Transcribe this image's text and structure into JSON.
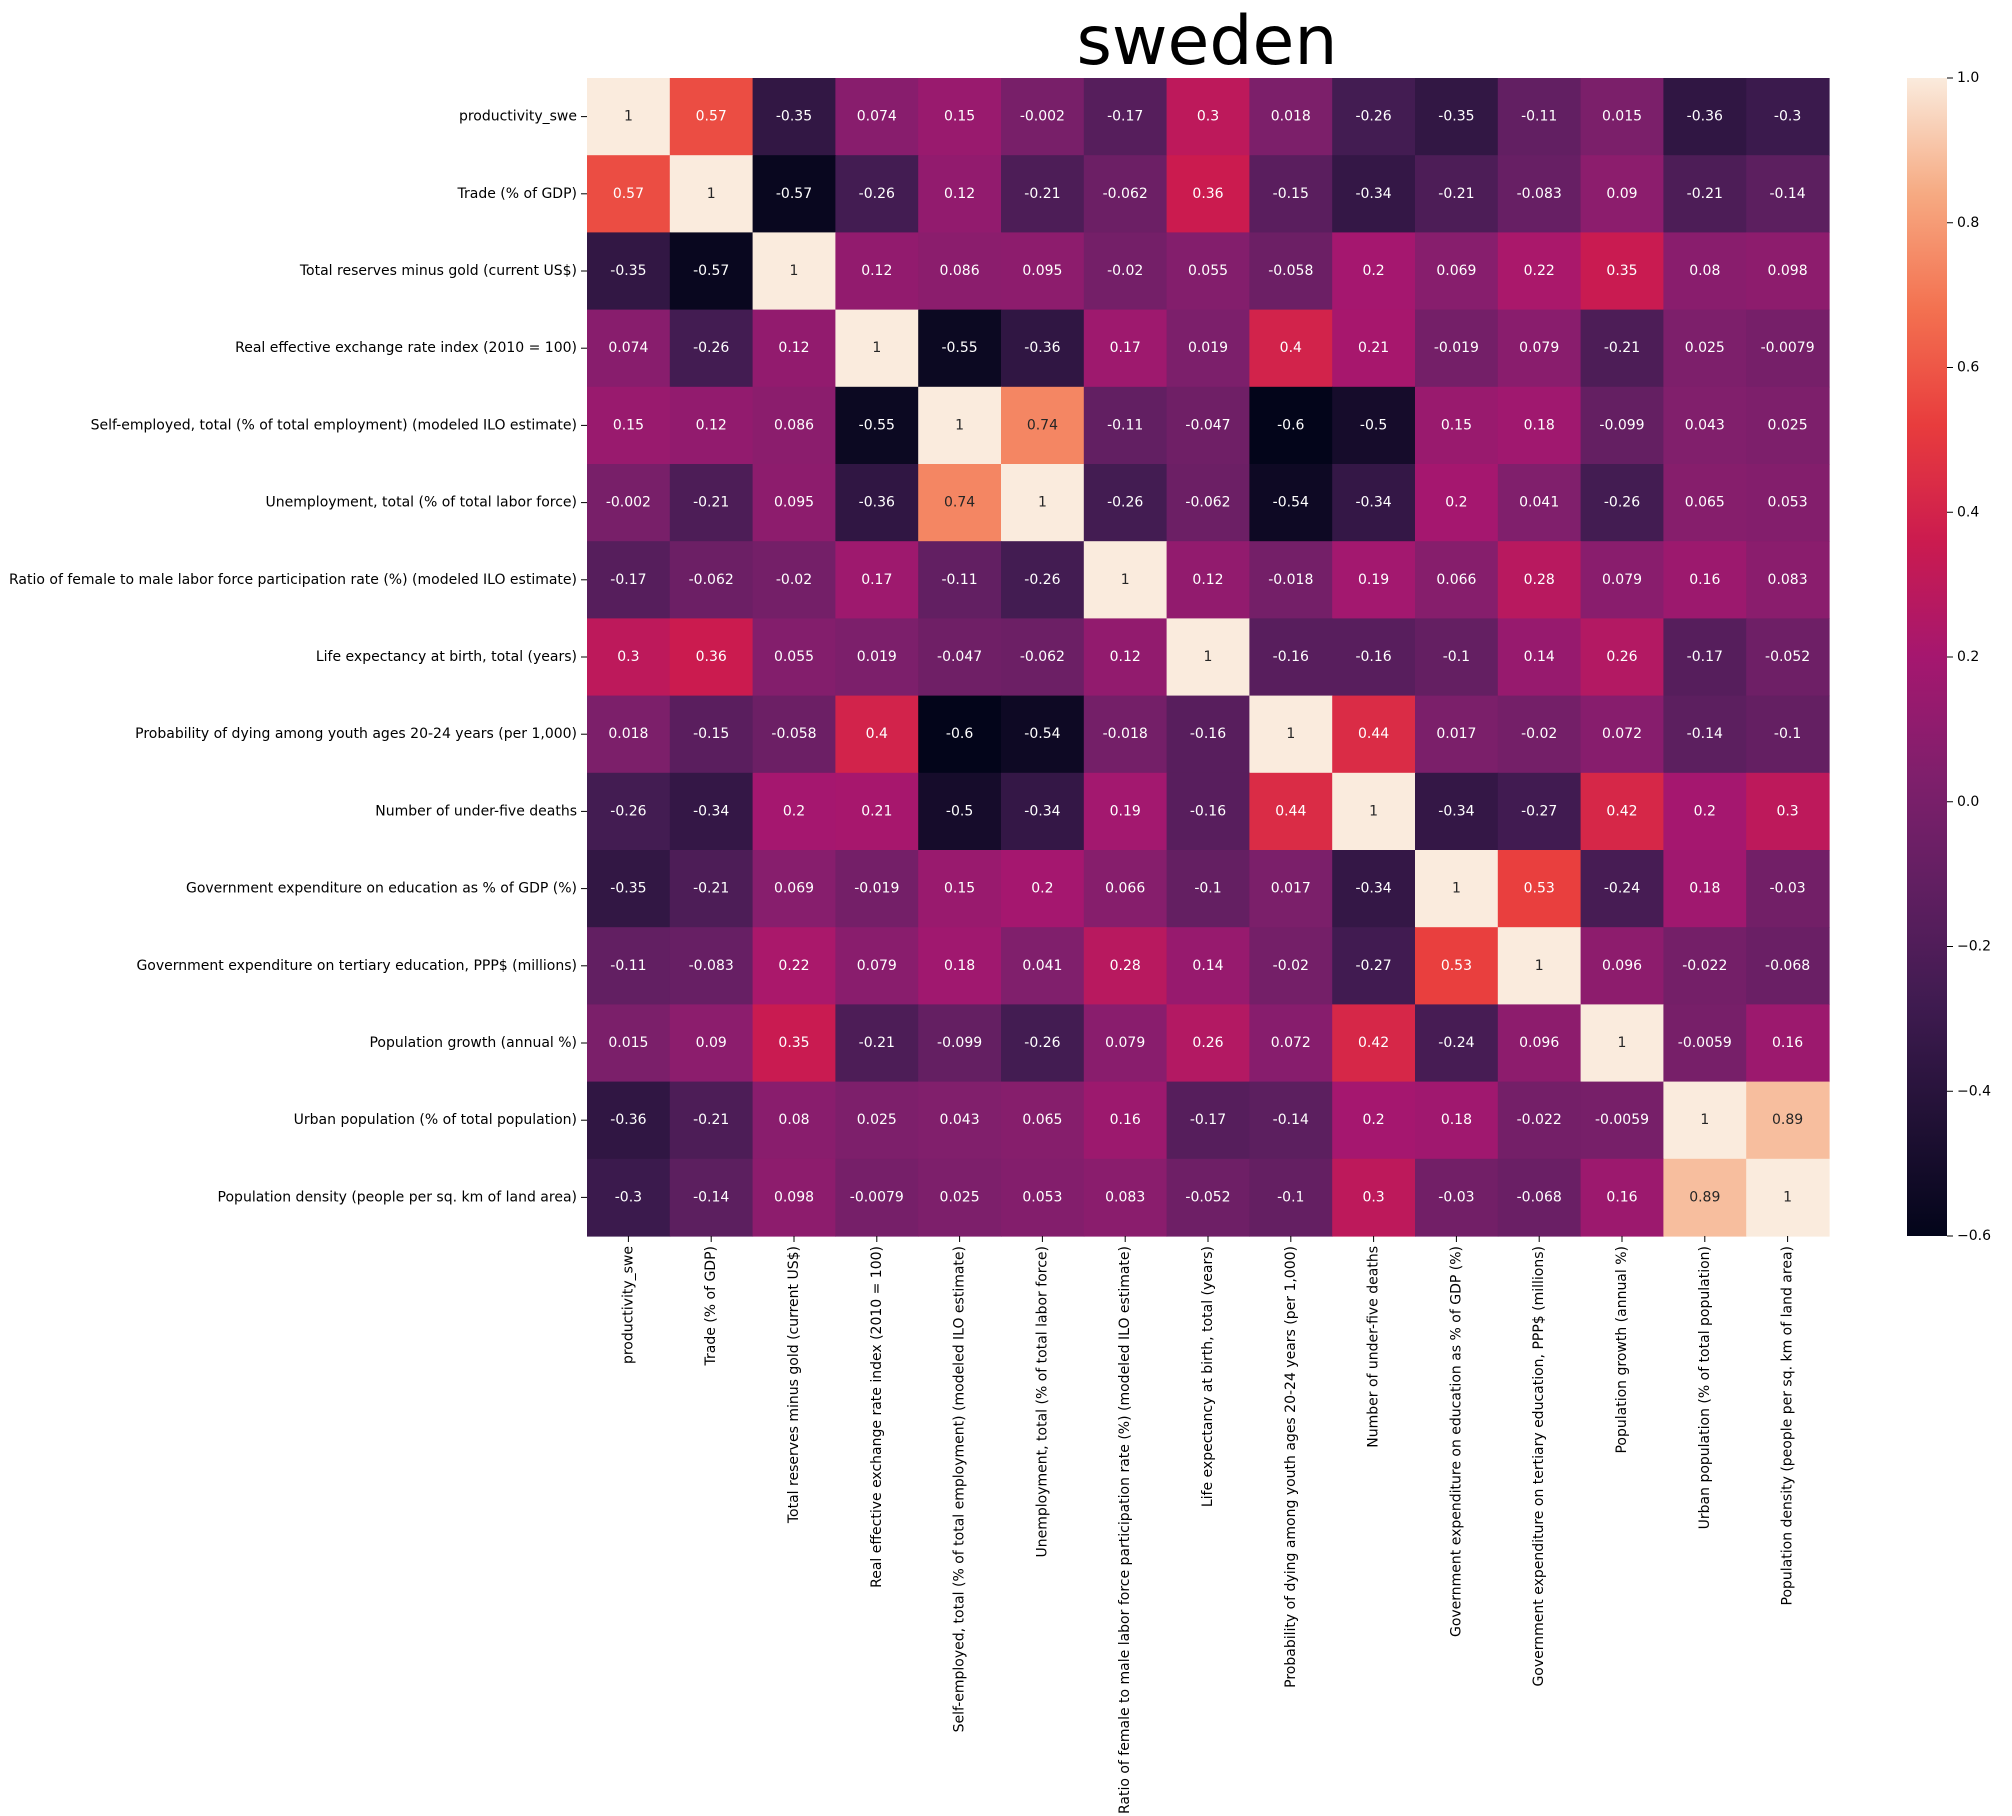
{
  "chart_data": {
    "type": "heatmap",
    "title": "sweden",
    "labels": [
      "productivity_swe",
      "Trade (% of GDP)",
      "Total reserves minus gold (current US$)",
      "Real effective exchange rate index (2010 = 100)",
      "Self-employed, total (% of total employment) (modeled ILO estimate)",
      "Unemployment, total (% of total labor force)",
      "Ratio of female to male labor force participation rate (%) (modeled ILO estimate)",
      "Life expectancy at birth, total (years)",
      "Probability of dying among youth ages 20-24 years (per 1,000)",
      "Number of under-five deaths",
      "Government expenditure on education as % of GDP (%)",
      "Government expenditure on tertiary education, PPP$ (millions)",
      "Population growth (annual %)",
      "Urban population (% of total population)",
      "Population density (people per sq. km of land area)"
    ],
    "matrix": [
      [
        "1",
        "0.57",
        "-0.35",
        "0.074",
        "0.15",
        "-0.002",
        "-0.17",
        "0.3",
        "0.018",
        "-0.26",
        "-0.35",
        "-0.11",
        "0.015",
        "-0.36",
        "-0.3"
      ],
      [
        "0.57",
        "1",
        "-0.57",
        "-0.26",
        "0.12",
        "-0.21",
        "-0.062",
        "0.36",
        "-0.15",
        "-0.34",
        "-0.21",
        "-0.083",
        "0.09",
        "-0.21",
        "-0.14"
      ],
      [
        "-0.35",
        "-0.57",
        "1",
        "0.12",
        "0.086",
        "0.095",
        "-0.02",
        "0.055",
        "-0.058",
        "0.2",
        "0.069",
        "0.22",
        "0.35",
        "0.08",
        "0.098"
      ],
      [
        "0.074",
        "-0.26",
        "0.12",
        "1",
        "-0.55",
        "-0.36",
        "0.17",
        "0.019",
        "0.4",
        "0.21",
        "-0.019",
        "0.079",
        "-0.21",
        "0.025",
        "-0.0079"
      ],
      [
        "0.15",
        "0.12",
        "0.086",
        "-0.55",
        "1",
        "0.74",
        "-0.11",
        "-0.047",
        "-0.6",
        "-0.5",
        "0.15",
        "0.18",
        "-0.099",
        "0.043",
        "0.025"
      ],
      [
        "-0.002",
        "-0.21",
        "0.095",
        "-0.36",
        "0.74",
        "1",
        "-0.26",
        "-0.062",
        "-0.54",
        "-0.34",
        "0.2",
        "0.041",
        "-0.26",
        "0.065",
        "0.053"
      ],
      [
        "-0.17",
        "-0.062",
        "-0.02",
        "0.17",
        "-0.11",
        "-0.26",
        "1",
        "0.12",
        "-0.018",
        "0.19",
        "0.066",
        "0.28",
        "0.079",
        "0.16",
        "0.083"
      ],
      [
        "0.3",
        "0.36",
        "0.055",
        "0.019",
        "-0.047",
        "-0.062",
        "0.12",
        "1",
        "-0.16",
        "-0.16",
        "-0.1",
        "0.14",
        "0.26",
        "-0.17",
        "-0.052"
      ],
      [
        "0.018",
        "-0.15",
        "-0.058",
        "0.4",
        "-0.6",
        "-0.54",
        "-0.018",
        "-0.16",
        "1",
        "0.44",
        "0.017",
        "-0.02",
        "0.072",
        "-0.14",
        "-0.1"
      ],
      [
        "-0.26",
        "-0.34",
        "0.2",
        "0.21",
        "-0.5",
        "-0.34",
        "0.19",
        "-0.16",
        "0.44",
        "1",
        "-0.34",
        "-0.27",
        "0.42",
        "0.2",
        "0.3"
      ],
      [
        "-0.35",
        "-0.21",
        "0.069",
        "-0.019",
        "0.15",
        "0.2",
        "0.066",
        "-0.1",
        "0.017",
        "-0.34",
        "1",
        "0.53",
        "-0.24",
        "0.18",
        "-0.03"
      ],
      [
        "-0.11",
        "-0.083",
        "0.22",
        "0.079",
        "0.18",
        "0.041",
        "0.28",
        "0.14",
        "-0.02",
        "-0.27",
        "0.53",
        "1",
        "0.096",
        "-0.022",
        "-0.068"
      ],
      [
        "0.015",
        "0.09",
        "0.35",
        "-0.21",
        "-0.099",
        "-0.26",
        "0.079",
        "0.26",
        "0.072",
        "0.42",
        "-0.24",
        "0.096",
        "1",
        "-0.0059",
        "0.16"
      ],
      [
        "-0.36",
        "-0.21",
        "0.08",
        "0.025",
        "0.043",
        "0.065",
        "0.16",
        "-0.17",
        "-0.14",
        "0.2",
        "0.18",
        "-0.022",
        "-0.0059",
        "1",
        "0.89"
      ],
      [
        "-0.3",
        "-0.14",
        "0.098",
        "-0.0079",
        "0.025",
        "0.053",
        "0.083",
        "-0.052",
        "-0.1",
        "0.3",
        "-0.03",
        "-0.068",
        "0.16",
        "0.89",
        "1"
      ]
    ],
    "vmin": -0.6,
    "vmax": 1.0,
    "colormap": "rocket",
    "colorbar_ticks": [
      "1.0",
      "0.8",
      "0.6",
      "0.4",
      "0.2",
      "0.0",
      "−0.2",
      "−0.4",
      "−0.6"
    ],
    "colorbar_tick_values": [
      1.0,
      0.8,
      0.6,
      0.4,
      0.2,
      0.0,
      -0.2,
      -0.4,
      -0.6
    ],
    "legend": "colorbar-right",
    "grid": false
  }
}
